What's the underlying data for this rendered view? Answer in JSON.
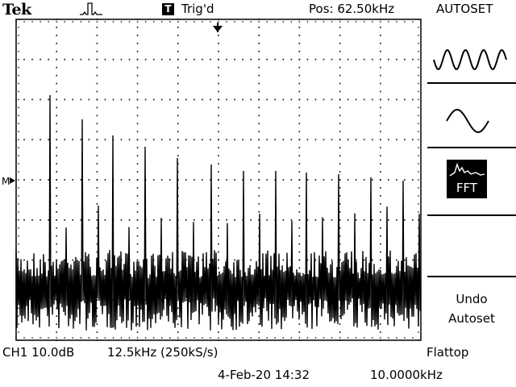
{
  "header": {
    "brand": "Tek",
    "acquisition_icon": "pulse-waveform-icon",
    "trigger_icon_letter": "T",
    "trigger_status": "Trig'd",
    "position": "Pos: 62.50kHz",
    "menu_title": "AUTOSET"
  },
  "side_menu": {
    "items": [
      {
        "name": "multi-cycle-sine-icon",
        "selected": false
      },
      {
        "name": "single-cycle-sine-icon",
        "selected": false
      },
      {
        "name": "fft-spectrum-icon",
        "label": "FFT",
        "selected": true
      }
    ],
    "undo_line1": "Undo",
    "undo_line2": "Autoset"
  },
  "display": {
    "ground_marker": "M",
    "trigger_marker": "trigger-position-marker",
    "spectrum_color": "#000000",
    "grid_divisions_x": 10,
    "grid_divisions_y": 8
  },
  "status": {
    "channel_scale": "CH1 10.0dB",
    "span": "12.5kHz (250kS/s)",
    "window": "Flattop",
    "date_time": "4-Feb-20 14:32",
    "frequency": "10.0000kHz"
  }
}
